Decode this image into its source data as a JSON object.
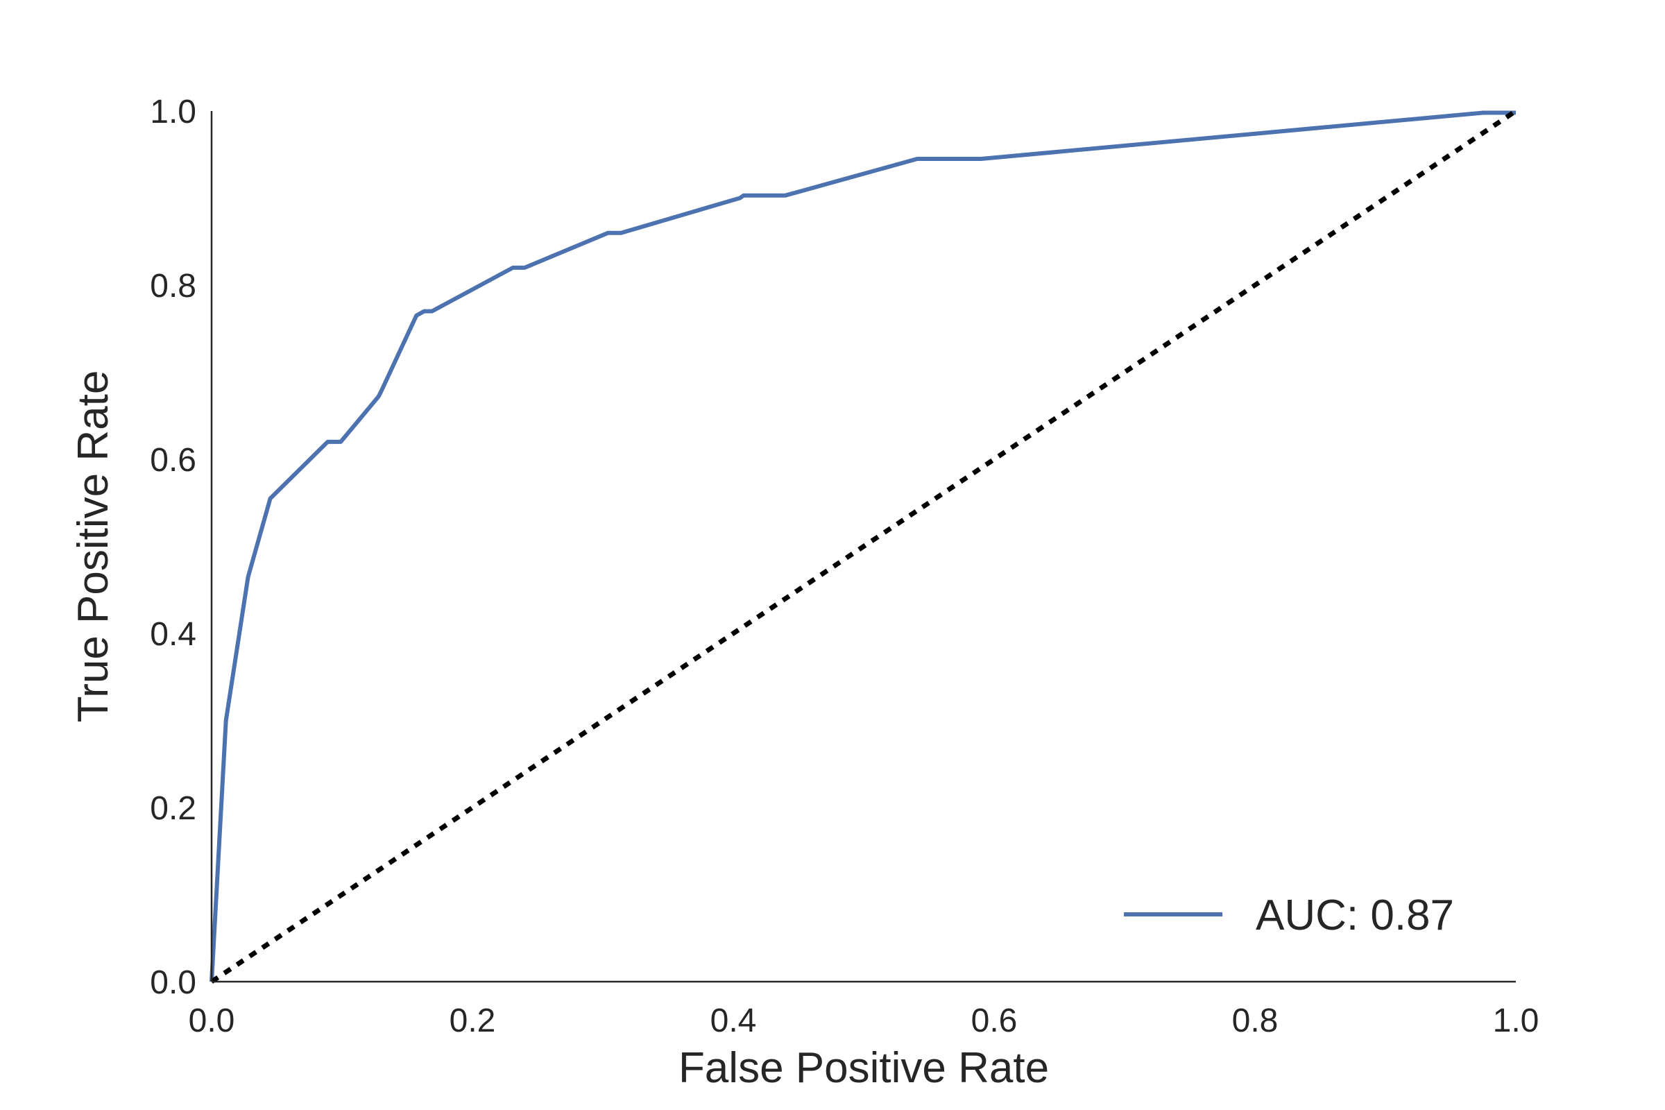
{
  "chart_data": {
    "type": "line",
    "xlabel": "False Positive Rate",
    "ylabel": "True Positive Rate",
    "xlim": [
      0.0,
      1.0
    ],
    "ylim": [
      0.0,
      1.0
    ],
    "x_ticks": [
      "0.0",
      "0.2",
      "0.4",
      "0.6",
      "0.8",
      "1.0"
    ],
    "y_ticks": [
      "0.0",
      "0.2",
      "0.4",
      "0.6",
      "0.8",
      "1.0"
    ],
    "grid": false,
    "legend_position": "lower-right",
    "series": [
      {
        "name": "AUC: 0.87",
        "color": "#4c72b0",
        "style": "solid",
        "x": [
          0.0,
          0.011,
          0.028,
          0.045,
          0.089,
          0.099,
          0.128,
          0.13,
          0.157,
          0.163,
          0.169,
          0.231,
          0.24,
          0.304,
          0.314,
          0.405,
          0.408,
          0.42,
          0.44,
          0.541,
          0.55,
          0.59,
          0.975,
          1.0
        ],
        "y": [
          0.0,
          0.3,
          0.465,
          0.555,
          0.62,
          0.62,
          0.672,
          0.678,
          0.765,
          0.77,
          0.77,
          0.82,
          0.82,
          0.86,
          0.86,
          0.9,
          0.903,
          0.903,
          0.903,
          0.945,
          0.945,
          0.945,
          0.998,
          0.998
        ]
      },
      {
        "name": "",
        "color": "#000000",
        "style": "dotted",
        "x": [
          0.0,
          1.0
        ],
        "y": [
          0.0,
          1.0
        ]
      }
    ],
    "legend": {
      "entries": [
        "AUC: 0.87"
      ]
    }
  }
}
